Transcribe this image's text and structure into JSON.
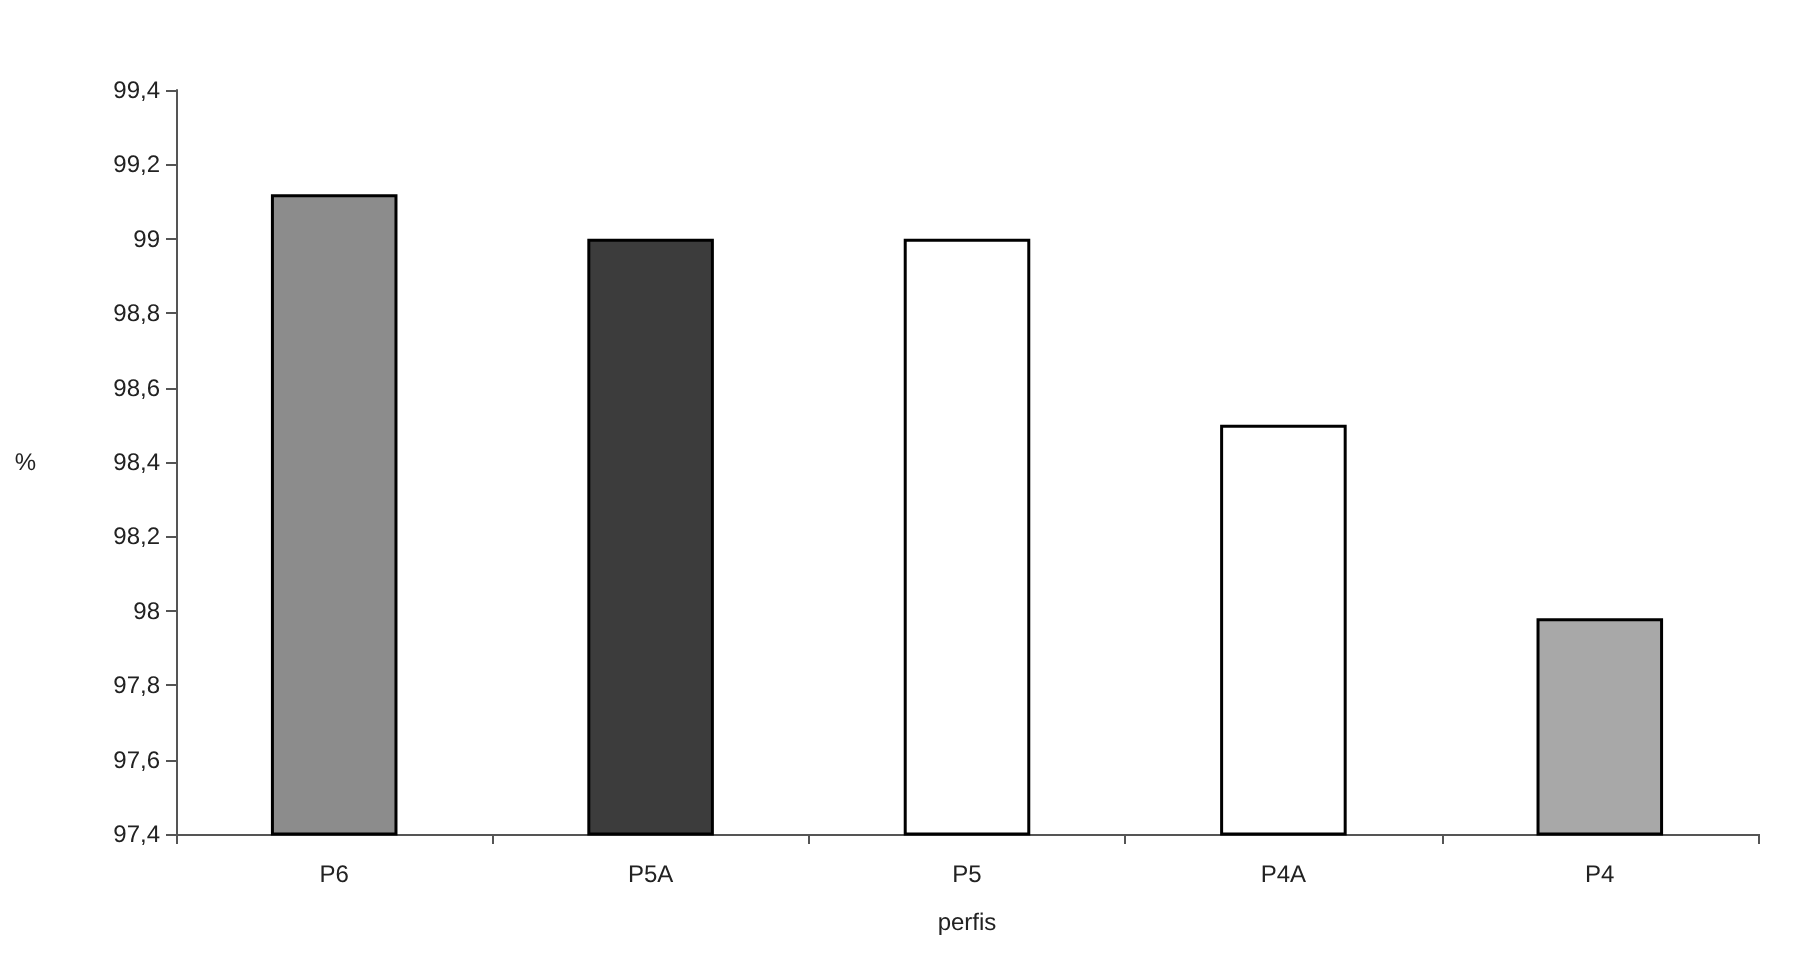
{
  "chart_data": {
    "type": "bar",
    "xlabel": "perfis",
    "ylabel": "%",
    "categories": [
      "P6",
      "P5A",
      "P5",
      "P4A",
      "P4"
    ],
    "values": [
      99.12,
      99.0,
      99.0,
      98.5,
      97.98
    ],
    "colors": [
      "#8c8c8c",
      "#3c3c3c",
      "#ffffff",
      "#ffffff",
      "#a8a8a8"
    ],
    "ylim": [
      97.4,
      99.4
    ],
    "yticks": [
      {
        "value": 97.4,
        "label": "97,4"
      },
      {
        "value": 97.6,
        "label": "97,6"
      },
      {
        "value": 97.8,
        "label": "97,8"
      },
      98,
      {
        "value": 98.2,
        "label": "98,2"
      },
      {
        "value": 98.4,
        "label": "98,4"
      },
      {
        "value": 98.6,
        "label": "98,6"
      },
      {
        "value": 98.8,
        "label": "98,8"
      },
      99,
      {
        "value": 99.2,
        "label": "99,2"
      },
      {
        "value": 99.4,
        "label": "99,4"
      }
    ],
    "data_labels": false
  }
}
